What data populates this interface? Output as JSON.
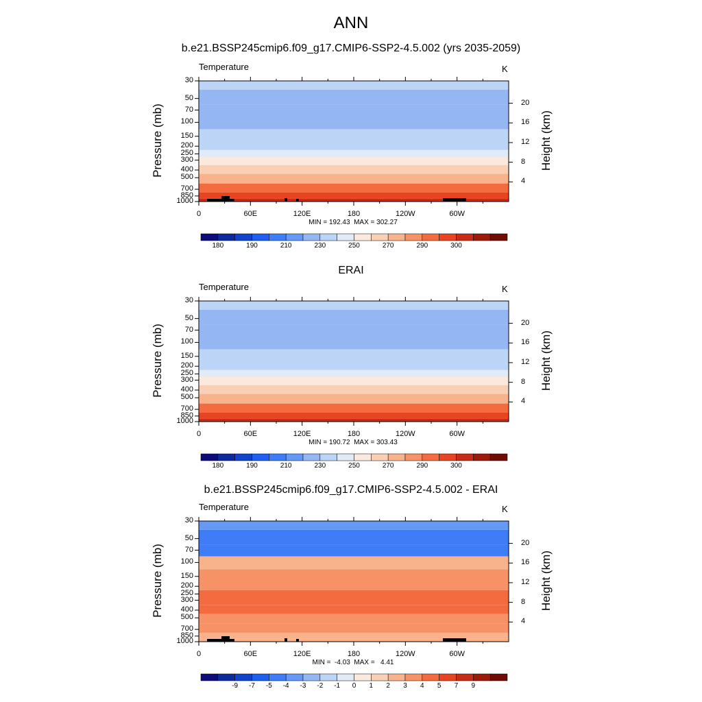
{
  "main_title": "ANN",
  "colors": {
    "temp_scale": [
      "#0c0d7a",
      "#0c2a9e",
      "#1144cc",
      "#1e5ef0",
      "#3f7df8",
      "#6699f5",
      "#94b7f4",
      "#bcd4f6",
      "#e1ebf7",
      "#fbe9dd",
      "#f9d0b6",
      "#f8b38d",
      "#f79266",
      "#f46b3f",
      "#e84421",
      "#c62d14",
      "#9b1a0a",
      "#700b04"
    ],
    "diff_scale": [
      "#0c0d7a",
      "#0c2a9e",
      "#1144cc",
      "#1e5ef0",
      "#3f7df8",
      "#6699f5",
      "#94b7f4",
      "#bcd4f6",
      "#e1ebf7",
      "#fbe9dd",
      "#f9d0b6",
      "#f8b38d",
      "#f79266",
      "#f46b3f",
      "#e84421",
      "#c62d14",
      "#9b1a0a",
      "#700b04"
    ],
    "terrain": "#000000"
  },
  "chart_data": [
    {
      "type": "heatmap",
      "title": "b.e21.BSSP245cmip6.f09_g17.CMIP6-SSP2-4.5.002 (yrs 2035-2059)",
      "variable": "Temperature",
      "units": "K",
      "xlabel": "",
      "ylabel": "Pressure (mb)",
      "ylabel_right": "Height (km)",
      "x_ticks": [
        "0",
        "60E",
        "120E",
        "180",
        "120W",
        "60W"
      ],
      "y_ticks": [
        "30",
        "50",
        "70",
        "100",
        "150",
        "200",
        "250",
        "300",
        "400",
        "500",
        "700",
        "850",
        "1000"
      ],
      "y_right_ticks": [
        "20",
        "16",
        "12",
        "8",
        "4"
      ],
      "stats": "MIN = 192.43  MAX = 302.27",
      "colorbar_ticks": [
        "180",
        "190",
        "210",
        "230",
        "250",
        "270",
        "290",
        "300"
      ],
      "levels_p": [
        30,
        50,
        70,
        100,
        150,
        200,
        250,
        300,
        400,
        500,
        700,
        850,
        1000
      ],
      "values_k": [
        215,
        209,
        206,
        206,
        212,
        218,
        226,
        234,
        247,
        258,
        272,
        283,
        294
      ]
    },
    {
      "type": "heatmap",
      "title": "ERAI",
      "variable": "Temperature",
      "units": "K",
      "xlabel": "",
      "ylabel": "Pressure (mb)",
      "ylabel_right": "Height (km)",
      "x_ticks": [
        "0",
        "60E",
        "120E",
        "180",
        "120W",
        "60W"
      ],
      "y_ticks": [
        "30",
        "50",
        "70",
        "100",
        "150",
        "200",
        "250",
        "300",
        "400",
        "500",
        "700",
        "850",
        "1000"
      ],
      "y_right_ticks": [
        "20",
        "16",
        "12",
        "8",
        "4"
      ],
      "stats": "MIN = 190.72  MAX = 303.43",
      "colorbar_ticks": [
        "180",
        "190",
        "210",
        "230",
        "250",
        "270",
        "290",
        "300"
      ],
      "levels_p": [
        30,
        50,
        70,
        100,
        150,
        200,
        250,
        300,
        400,
        500,
        700,
        850,
        1000
      ],
      "values_k": [
        216,
        209,
        206,
        206,
        211,
        217,
        225,
        233,
        246,
        257,
        271,
        283,
        294
      ]
    },
    {
      "type": "heatmap",
      "title": "b.e21.BSSP245cmip6.f09_g17.CMIP6-SSP2-4.5.002 - ERAI",
      "variable": "Temperature",
      "units": "K",
      "xlabel": "",
      "ylabel": "Pressure (mb)",
      "ylabel_right": "Height (km)",
      "x_ticks": [
        "0",
        "60E",
        "120E",
        "180",
        "120W",
        "60W"
      ],
      "y_ticks": [
        "30",
        "50",
        "70",
        "100",
        "150",
        "200",
        "250",
        "300",
        "400",
        "500",
        "700",
        "850",
        "1000"
      ],
      "y_right_ticks": [
        "20",
        "16",
        "12",
        "8",
        "4"
      ],
      "stats": "MIN =  -4.03  MAX =   4.41",
      "colorbar_ticks": [
        "-9",
        "-7",
        "-5",
        "-4",
        "-3",
        "-2",
        "-1",
        "0",
        "1",
        "2",
        "3",
        "4",
        "5",
        "7",
        "9"
      ],
      "levels_p": [
        30,
        50,
        70,
        100,
        150,
        200,
        250,
        300,
        400,
        500,
        700,
        850,
        1000
      ],
      "values_k": [
        -2.5,
        -3,
        -3,
        1.5,
        2.2,
        2.6,
        3.2,
        3.4,
        3.2,
        2.6,
        2.2,
        1.6,
        1.2
      ]
    }
  ]
}
